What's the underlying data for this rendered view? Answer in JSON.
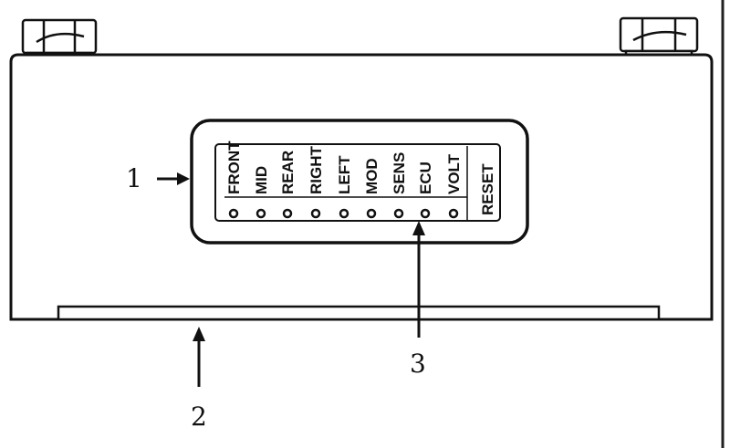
{
  "panel_labels": [
    "FRONT",
    "MID",
    "REAR",
    "RIGHT",
    "LEFT",
    "MOD",
    "SENS",
    "ECU",
    "VOLT"
  ],
  "reset_label": "RESET",
  "callouts": {
    "one": "1",
    "two": "2",
    "three": "3"
  }
}
